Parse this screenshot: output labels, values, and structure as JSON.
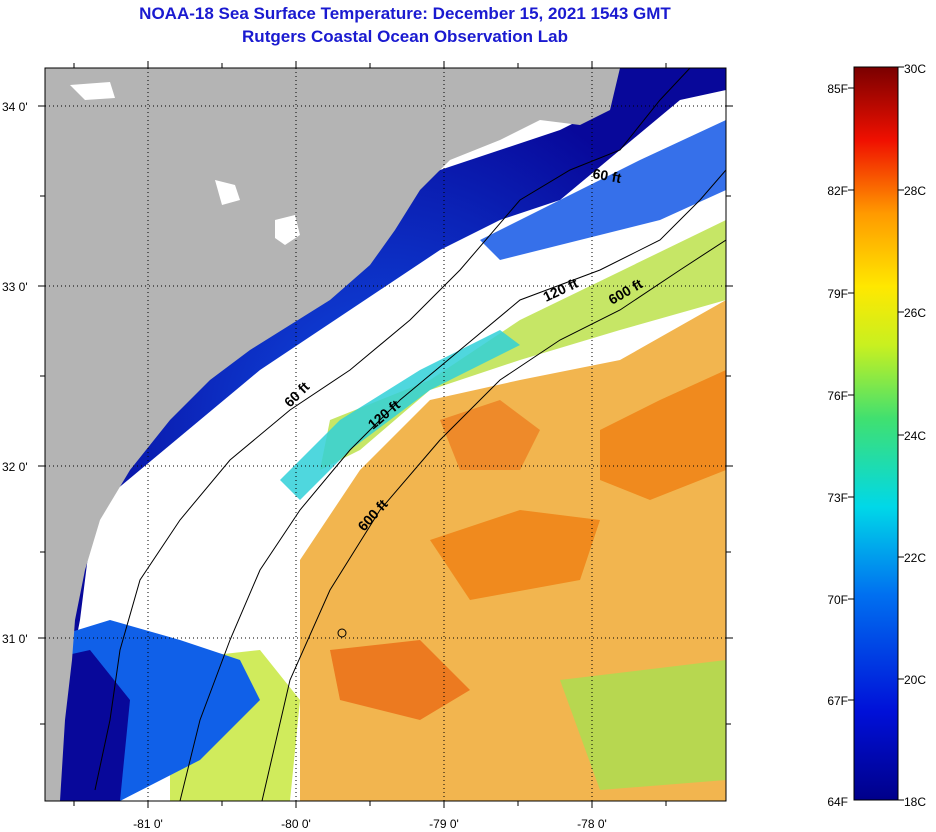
{
  "title": "NOAA-18 Sea Surface Temperature:  December 15, 2021 1543 GMT",
  "subtitle": "Rutgers Coastal Ocean Observation Lab",
  "map": {
    "lat_labels": [
      "34 0'",
      "33 0'",
      "32 0'",
      "31 0'"
    ],
    "lon_labels": [
      "-81 0'",
      "-80 0'",
      "-79 0'",
      "-78 0'"
    ],
    "contour_labels": {
      "c60_north": "60 ft",
      "c60_south": "60 ft",
      "c120_north": "120 ft",
      "c120_south": "120 ft",
      "c600_north": "600 ft",
      "c600_south": "600 ft"
    },
    "colors": {
      "land": "#b4b4b4",
      "cloud": "#ffffff",
      "cold": "#0a0a8c",
      "warm": "#f08a1e"
    }
  },
  "colorbar": {
    "fahrenheit_labels": [
      "85F",
      "82F",
      "79F",
      "76F",
      "73F",
      "70F",
      "67F",
      "64F"
    ],
    "celsius_labels": [
      "30C",
      "28C",
      "26C",
      "24C",
      "22C",
      "20C",
      "18C"
    ]
  }
}
